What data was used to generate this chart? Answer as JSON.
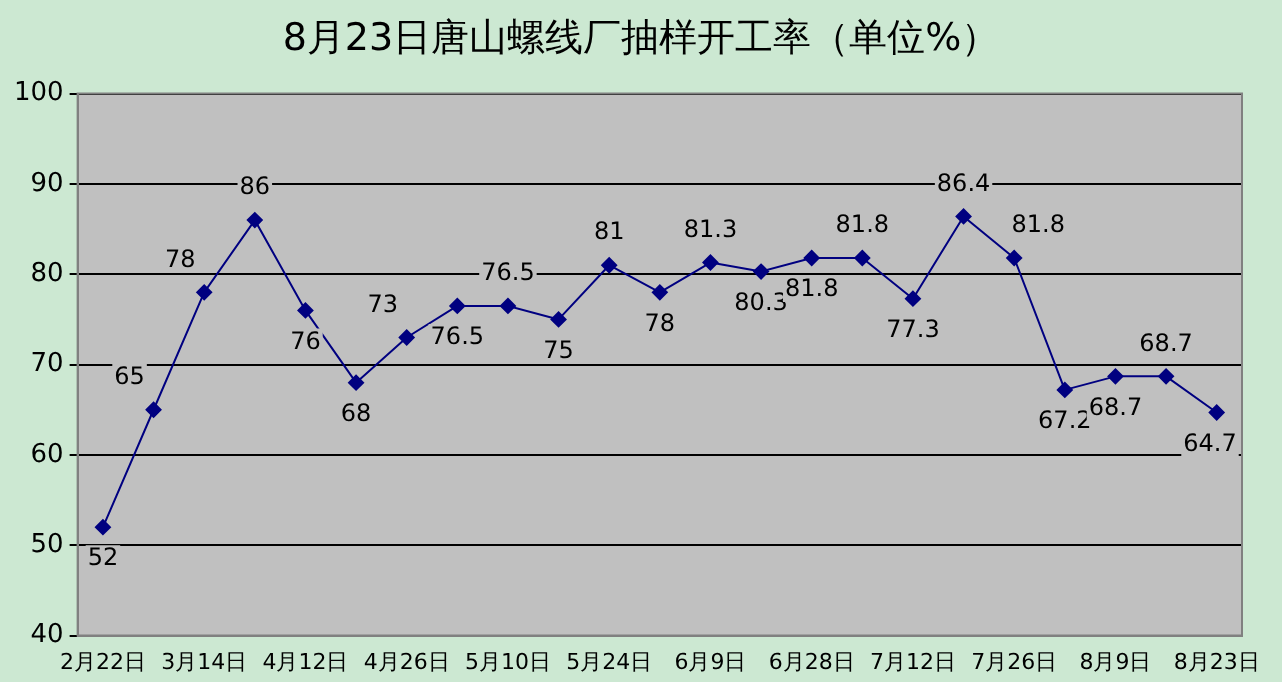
{
  "chart_data": {
    "type": "line",
    "title": "8月23日唐山螺线厂抽样开工率（单位%）",
    "categories": [
      "2月22日",
      null,
      "3月14日",
      null,
      "4月12日",
      null,
      "4月26日",
      null,
      "5月10日",
      null,
      "5月24日",
      null,
      "6月9日",
      null,
      "6月28日",
      null,
      "7月12日",
      null,
      "7月26日",
      null,
      "8月9日",
      null,
      "8月23日"
    ],
    "series": [
      {
        "color": "#000080",
        "values": [
          52,
          65,
          78,
          86,
          76,
          68,
          73,
          76.5,
          76.5,
          75,
          81,
          78,
          81.3,
          80.3,
          81.8,
          81.8,
          77.3,
          86.4,
          81.8,
          67.2,
          68.7,
          68.7,
          64.7
        ]
      }
    ],
    "ylim": [
      40,
      100
    ],
    "yticks": [
      40,
      50,
      60,
      70,
      80,
      90,
      100
    ],
    "grid": "y",
    "legend": false,
    "marker": "diamond",
    "line_style": "solid",
    "data_labels": true
  }
}
